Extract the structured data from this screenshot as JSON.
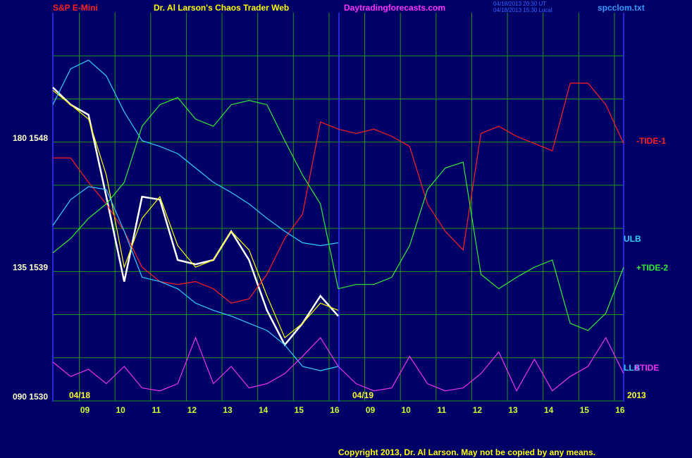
{
  "chart_data": {
    "type": "line",
    "title": "Dr. Al Larson's Chaos Trader Web",
    "annotations": [
      "S&P E-Mini",
      "Daytradingforecasts.com",
      "04/18/2013 20:30 UT",
      "04/18/2013 15:30 Local",
      "spcclom.txt",
      "04/18",
      "04/19",
      "2013",
      "Copyright 2013, Dr. Al Larson. May not be copied by any means."
    ],
    "x": [
      8.1,
      8.6,
      9.1,
      9.6,
      10.1,
      10.6,
      11.1,
      11.6,
      12.1,
      12.6,
      13.1,
      13.6,
      14.1,
      14.6,
      15.1,
      15.6,
      16.1,
      16.6,
      17.1,
      17.6,
      18.1,
      18.6,
      19.1,
      19.6,
      20.1,
      20.6,
      21.1,
      21.6,
      22.1,
      22.6,
      23.1,
      23.6,
      24.1
    ],
    "xlim": [
      8.1,
      24.1
    ],
    "xticks": [
      {
        "value": 9,
        "label": "09"
      },
      10,
      11,
      12,
      13,
      14,
      15,
      16,
      {
        "value": 17,
        "label": "09"
      },
      {
        "value": 18,
        "label": "10"
      },
      {
        "value": 19,
        "label": "11"
      },
      {
        "value": 20,
        "label": "12"
      },
      {
        "value": 21,
        "label": "13"
      },
      {
        "value": 22,
        "label": "14"
      },
      {
        "value": 23,
        "label": "15"
      },
      {
        "value": 24,
        "label": "16"
      }
    ],
    "ylim": [
      1530,
      1557
    ],
    "yticks": [
      {
        "value": 1548,
        "label": "180 1548"
      },
      {
        "value": 1539,
        "label": "135 1539"
      },
      {
        "value": 1530,
        "label": "090 1530"
      }
    ],
    "ygrid": [
      1530,
      1533,
      1536,
      1539,
      1542,
      1545,
      1548,
      1551,
      1554
    ],
    "grid": true,
    "series": [
      {
        "color": "#ffffff",
        "values": [
          1551.8,
          1550.6,
          1549.9,
          1544.2,
          1538.3,
          1544.2,
          1544.0,
          1539.8,
          1539.5,
          1539.8,
          1541.8,
          1539.8,
          1536.3,
          1533.9,
          1535.4,
          1537.3,
          1535.9,
          null,
          null,
          null,
          null,
          null,
          null,
          null,
          null,
          null,
          null,
          null,
          null,
          null,
          null,
          null,
          null
        ]
      },
      {
        "color": "#ffff00",
        "values": [
          1551.6,
          1550.6,
          1549.6,
          1545.7,
          1539.3,
          1542.7,
          1544.2,
          1540.8,
          1539.3,
          1539.8,
          1541.8,
          1540.5,
          1537.3,
          1534.4,
          1535.4,
          1536.8,
          1536.3,
          null,
          null,
          null,
          null,
          null,
          null,
          null,
          null,
          null,
          null,
          null,
          null,
          null,
          null,
          null,
          null
        ]
      },
      {
        "name": "-TIDE-1",
        "color": "#ff2020",
        "values": [
          1546.9,
          1546.9,
          1545.2,
          1543.7,
          1541.8,
          1539.3,
          1538.3,
          1538.1,
          1538.3,
          1537.8,
          1536.8,
          1537.1,
          1538.8,
          1541.3,
          1543.0,
          1549.4,
          1548.9,
          1548.6,
          1548.9,
          1548.4,
          1547.7,
          1543.7,
          1541.8,
          1540.5,
          1548.6,
          1549.1,
          1548.4,
          1547.9,
          1547.4,
          1552.1,
          1552.1,
          1550.6,
          1547.9
        ]
      },
      {
        "name": "ULB",
        "color": "#33ccff",
        "values": [
          1550.6,
          1553.1,
          1553.7,
          1552.6,
          1550.1,
          1548.1,
          1547.7,
          1547.2,
          1546.2,
          1545.2,
          1544.5,
          1543.7,
          1542.7,
          1541.8,
          1541.0,
          1540.8,
          1541.0,
          null,
          null,
          null,
          null,
          null,
          null,
          null,
          null,
          null,
          null,
          null,
          null,
          null,
          null,
          null,
          null
        ]
      },
      {
        "name": "+TIDE-2",
        "color": "#33ee33",
        "values": [
          1540.3,
          1541.3,
          1542.7,
          1543.7,
          1545.2,
          1549.1,
          1550.6,
          1551.1,
          1549.6,
          1549.1,
          1550.6,
          1550.9,
          1550.6,
          1548.1,
          1545.7,
          1543.7,
          1537.8,
          1538.1,
          1538.1,
          1538.6,
          1540.8,
          1544.7,
          1546.2,
          1546.6,
          1538.8,
          1537.8,
          1538.6,
          1539.3,
          1539.8,
          1535.4,
          1534.9,
          1536.1,
          1539.3
        ]
      },
      {
        "name": "LLB",
        "color": "#33ccff",
        "values": [
          1542.2,
          1544.0,
          1544.9,
          1544.7,
          1541.8,
          1538.6,
          1538.3,
          1537.8,
          1536.8,
          1536.3,
          1535.9,
          1535.4,
          1534.9,
          1533.9,
          1532.4,
          1532.1,
          1532.4,
          null,
          null,
          null,
          null,
          null,
          null,
          null,
          null,
          null,
          null,
          null,
          null,
          null,
          null,
          null,
          null
        ]
      },
      {
        "name": "XTIDE",
        "color": "#ee33ee",
        "values": [
          1532.7,
          1531.7,
          1532.2,
          1531.2,
          1532.4,
          1530.9,
          1530.7,
          1531.2,
          1534.4,
          1531.2,
          1532.4,
          1530.9,
          1531.2,
          1531.9,
          1533.1,
          1534.4,
          1532.4,
          1531.2,
          1530.7,
          1530.9,
          1533.1,
          1531.2,
          1530.7,
          1530.9,
          1531.9,
          1533.4,
          1530.7,
          1532.9,
          1530.7,
          1531.7,
          1532.4,
          1534.4,
          1531.9
        ]
      }
    ]
  }
}
